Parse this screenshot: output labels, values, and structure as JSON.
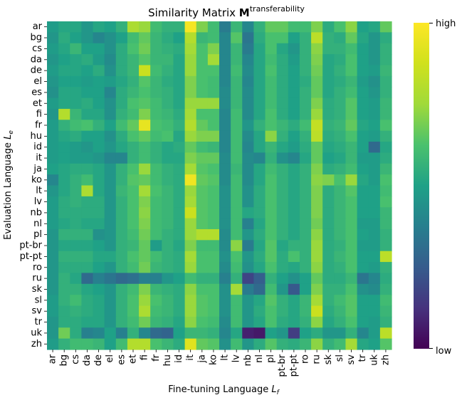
{
  "chart_data": {
    "type": "heatmap",
    "title": {
      "prefix": "Similarity Matrix ",
      "symbol": "M",
      "superscript": "transferability"
    },
    "xlabel": {
      "text": "Fine-tuning Language ",
      "var": "L",
      "sub": "f"
    },
    "ylabel": {
      "text": "Evaluation Language ",
      "var": "L",
      "sub": "e"
    },
    "x_categories": [
      "ar",
      "bg",
      "cs",
      "da",
      "de",
      "el",
      "es",
      "et",
      "fi",
      "fr",
      "hu",
      "id",
      "it",
      "ja",
      "ko",
      "lt",
      "lv",
      "nb",
      "nl",
      "pl",
      "pt-br",
      "pt-pt",
      "ro",
      "ru",
      "sk",
      "sl",
      "sv",
      "tr",
      "uk",
      "zh"
    ],
    "y_categories": [
      "ar",
      "bg",
      "cs",
      "da",
      "de",
      "el",
      "es",
      "et",
      "fi",
      "fr",
      "hu",
      "id",
      "it",
      "ja",
      "ko",
      "lt",
      "lv",
      "nb",
      "nl",
      "pl",
      "pt-br",
      "pt-pt",
      "ro",
      "ru",
      "sk",
      "sl",
      "sv",
      "tr",
      "uk",
      "zh"
    ],
    "colorbar": {
      "colormap": "viridis",
      "high_label": "high",
      "low_label": "low",
      "range": [
        0,
        1
      ]
    },
    "values": [
      [
        0.48,
        0.52,
        0.52,
        0.46,
        0.52,
        0.5,
        0.56,
        0.78,
        0.74,
        0.6,
        0.56,
        0.56,
        0.98,
        0.7,
        0.6,
        0.36,
        0.58,
        0.4,
        0.56,
        0.66,
        0.66,
        0.6,
        0.6,
        0.7,
        0.54,
        0.62,
        0.72,
        0.5,
        0.52,
        0.66
      ],
      [
        0.46,
        0.54,
        0.5,
        0.46,
        0.4,
        0.44,
        0.5,
        0.6,
        0.66,
        0.58,
        0.54,
        0.5,
        0.8,
        0.58,
        0.6,
        0.4,
        0.64,
        0.34,
        0.54,
        0.62,
        0.62,
        0.5,
        0.56,
        0.82,
        0.56,
        0.54,
        0.66,
        0.52,
        0.46,
        0.54
      ],
      [
        0.48,
        0.52,
        0.58,
        0.5,
        0.5,
        0.44,
        0.54,
        0.62,
        0.68,
        0.58,
        0.56,
        0.54,
        0.76,
        0.62,
        0.7,
        0.4,
        0.58,
        0.36,
        0.52,
        0.62,
        0.52,
        0.46,
        0.56,
        0.72,
        0.56,
        0.56,
        0.6,
        0.5,
        0.46,
        0.56
      ],
      [
        0.46,
        0.5,
        0.52,
        0.54,
        0.48,
        0.42,
        0.54,
        0.58,
        0.64,
        0.58,
        0.58,
        0.52,
        0.74,
        0.62,
        0.76,
        0.4,
        0.58,
        0.4,
        0.52,
        0.6,
        0.54,
        0.48,
        0.56,
        0.7,
        0.52,
        0.54,
        0.62,
        0.5,
        0.46,
        0.56
      ],
      [
        0.48,
        0.52,
        0.52,
        0.5,
        0.54,
        0.44,
        0.54,
        0.58,
        0.86,
        0.6,
        0.56,
        0.52,
        0.74,
        0.62,
        0.62,
        0.4,
        0.6,
        0.42,
        0.52,
        0.62,
        0.54,
        0.5,
        0.56,
        0.68,
        0.52,
        0.56,
        0.62,
        0.5,
        0.48,
        0.58
      ],
      [
        0.46,
        0.5,
        0.5,
        0.48,
        0.5,
        0.48,
        0.52,
        0.56,
        0.64,
        0.58,
        0.54,
        0.52,
        0.7,
        0.62,
        0.6,
        0.4,
        0.58,
        0.4,
        0.52,
        0.6,
        0.54,
        0.5,
        0.54,
        0.66,
        0.52,
        0.54,
        0.58,
        0.48,
        0.44,
        0.56
      ],
      [
        0.44,
        0.52,
        0.52,
        0.5,
        0.5,
        0.4,
        0.54,
        0.58,
        0.62,
        0.58,
        0.56,
        0.52,
        0.7,
        0.62,
        0.6,
        0.42,
        0.58,
        0.42,
        0.52,
        0.6,
        0.54,
        0.5,
        0.56,
        0.66,
        0.52,
        0.56,
        0.6,
        0.5,
        0.46,
        0.56
      ],
      [
        0.48,
        0.52,
        0.52,
        0.54,
        0.5,
        0.44,
        0.54,
        0.62,
        0.64,
        0.6,
        0.56,
        0.52,
        0.74,
        0.74,
        0.74,
        0.42,
        0.58,
        0.42,
        0.52,
        0.6,
        0.54,
        0.5,
        0.56,
        0.7,
        0.54,
        0.56,
        0.64,
        0.5,
        0.48,
        0.58
      ],
      [
        0.46,
        0.8,
        0.58,
        0.52,
        0.52,
        0.44,
        0.56,
        0.6,
        0.7,
        0.6,
        0.58,
        0.54,
        0.76,
        0.62,
        0.62,
        0.4,
        0.6,
        0.42,
        0.52,
        0.62,
        0.54,
        0.5,
        0.56,
        0.74,
        0.54,
        0.56,
        0.64,
        0.5,
        0.48,
        0.58
      ],
      [
        0.48,
        0.56,
        0.6,
        0.62,
        0.56,
        0.5,
        0.6,
        0.66,
        0.94,
        0.62,
        0.6,
        0.56,
        0.8,
        0.66,
        0.62,
        0.4,
        0.6,
        0.46,
        0.56,
        0.62,
        0.58,
        0.54,
        0.6,
        0.84,
        0.56,
        0.58,
        0.66,
        0.52,
        0.5,
        0.62
      ],
      [
        0.48,
        0.52,
        0.54,
        0.5,
        0.5,
        0.44,
        0.54,
        0.62,
        0.66,
        0.6,
        0.62,
        0.52,
        0.74,
        0.7,
        0.7,
        0.4,
        0.6,
        0.42,
        0.52,
        0.72,
        0.56,
        0.5,
        0.56,
        0.82,
        0.54,
        0.56,
        0.62,
        0.5,
        0.48,
        0.56
      ],
      [
        0.48,
        0.5,
        0.48,
        0.46,
        0.5,
        0.46,
        0.52,
        0.56,
        0.6,
        0.56,
        0.52,
        0.54,
        0.66,
        0.6,
        0.58,
        0.4,
        0.6,
        0.4,
        0.52,
        0.58,
        0.52,
        0.48,
        0.54,
        0.66,
        0.52,
        0.54,
        0.58,
        0.5,
        0.3,
        0.52
      ],
      [
        0.48,
        0.5,
        0.48,
        0.48,
        0.46,
        0.4,
        0.4,
        0.56,
        0.6,
        0.56,
        0.52,
        0.52,
        0.7,
        0.66,
        0.66,
        0.42,
        0.6,
        0.42,
        0.4,
        0.56,
        0.44,
        0.4,
        0.52,
        0.66,
        0.5,
        0.52,
        0.58,
        0.48,
        0.48,
        0.54
      ],
      [
        0.5,
        0.52,
        0.54,
        0.54,
        0.52,
        0.46,
        0.56,
        0.62,
        0.74,
        0.6,
        0.56,
        0.54,
        0.76,
        0.64,
        0.62,
        0.42,
        0.58,
        0.42,
        0.52,
        0.6,
        0.56,
        0.52,
        0.56,
        0.7,
        0.54,
        0.56,
        0.6,
        0.5,
        0.48,
        0.58
      ],
      [
        0.4,
        0.52,
        0.56,
        0.6,
        0.52,
        0.46,
        0.56,
        0.64,
        0.66,
        0.6,
        0.56,
        0.54,
        0.96,
        0.66,
        0.64,
        0.42,
        0.6,
        0.42,
        0.52,
        0.62,
        0.56,
        0.52,
        0.56,
        0.72,
        0.7,
        0.62,
        0.74,
        0.52,
        0.48,
        0.62
      ],
      [
        0.46,
        0.52,
        0.56,
        0.78,
        0.52,
        0.46,
        0.58,
        0.62,
        0.76,
        0.62,
        0.58,
        0.54,
        0.74,
        0.64,
        0.62,
        0.44,
        0.6,
        0.44,
        0.54,
        0.62,
        0.56,
        0.52,
        0.56,
        0.7,
        0.54,
        0.58,
        0.64,
        0.5,
        0.5,
        0.6
      ],
      [
        0.48,
        0.54,
        0.56,
        0.54,
        0.54,
        0.46,
        0.56,
        0.62,
        0.7,
        0.6,
        0.58,
        0.54,
        0.76,
        0.64,
        0.62,
        0.44,
        0.6,
        0.44,
        0.54,
        0.62,
        0.56,
        0.52,
        0.56,
        0.7,
        0.54,
        0.58,
        0.62,
        0.5,
        0.5,
        0.62
      ],
      [
        0.48,
        0.54,
        0.54,
        0.54,
        0.54,
        0.46,
        0.56,
        0.62,
        0.72,
        0.6,
        0.58,
        0.54,
        0.86,
        0.64,
        0.62,
        0.44,
        0.6,
        0.52,
        0.54,
        0.62,
        0.56,
        0.52,
        0.56,
        0.7,
        0.54,
        0.58,
        0.62,
        0.5,
        0.5,
        0.58
      ],
      [
        0.48,
        0.52,
        0.54,
        0.52,
        0.52,
        0.46,
        0.56,
        0.62,
        0.7,
        0.6,
        0.58,
        0.54,
        0.74,
        0.64,
        0.62,
        0.44,
        0.6,
        0.38,
        0.52,
        0.62,
        0.56,
        0.52,
        0.56,
        0.68,
        0.54,
        0.58,
        0.62,
        0.48,
        0.48,
        0.58
      ],
      [
        0.46,
        0.56,
        0.56,
        0.56,
        0.44,
        0.46,
        0.56,
        0.6,
        0.68,
        0.6,
        0.56,
        0.54,
        0.74,
        0.8,
        0.8,
        0.42,
        0.6,
        0.46,
        0.54,
        0.62,
        0.56,
        0.52,
        0.56,
        0.72,
        0.54,
        0.58,
        0.62,
        0.5,
        0.48,
        0.56
      ],
      [
        0.46,
        0.52,
        0.52,
        0.52,
        0.5,
        0.46,
        0.56,
        0.58,
        0.66,
        0.48,
        0.56,
        0.52,
        0.7,
        0.6,
        0.6,
        0.42,
        0.72,
        0.36,
        0.52,
        0.64,
        0.52,
        0.56,
        0.56,
        0.74,
        0.54,
        0.56,
        0.62,
        0.48,
        0.48,
        0.56
      ],
      [
        0.46,
        0.56,
        0.56,
        0.56,
        0.52,
        0.52,
        0.56,
        0.62,
        0.66,
        0.6,
        0.56,
        0.54,
        0.76,
        0.62,
        0.62,
        0.44,
        0.62,
        0.46,
        0.54,
        0.64,
        0.54,
        0.62,
        0.56,
        0.74,
        0.54,
        0.58,
        0.62,
        0.5,
        0.5,
        0.82
      ],
      [
        0.46,
        0.54,
        0.54,
        0.54,
        0.5,
        0.46,
        0.56,
        0.6,
        0.68,
        0.58,
        0.56,
        0.54,
        0.74,
        0.62,
        0.62,
        0.42,
        0.6,
        0.44,
        0.52,
        0.62,
        0.54,
        0.52,
        0.56,
        0.72,
        0.54,
        0.56,
        0.62,
        0.5,
        0.48,
        0.56
      ],
      [
        0.46,
        0.56,
        0.52,
        0.3,
        0.38,
        0.34,
        0.3,
        0.32,
        0.38,
        0.38,
        0.46,
        0.5,
        0.6,
        0.56,
        0.56,
        0.38,
        0.56,
        0.18,
        0.26,
        0.56,
        0.5,
        0.44,
        0.5,
        0.66,
        0.54,
        0.54,
        0.58,
        0.34,
        0.4,
        0.54
      ],
      [
        0.46,
        0.56,
        0.56,
        0.52,
        0.5,
        0.46,
        0.56,
        0.6,
        0.7,
        0.58,
        0.56,
        0.54,
        0.72,
        0.62,
        0.62,
        0.44,
        0.76,
        0.36,
        0.3,
        0.6,
        0.46,
        0.24,
        0.5,
        0.7,
        0.56,
        0.56,
        0.62,
        0.44,
        0.42,
        0.56
      ],
      [
        0.48,
        0.56,
        0.6,
        0.54,
        0.52,
        0.46,
        0.56,
        0.62,
        0.74,
        0.62,
        0.58,
        0.54,
        0.74,
        0.64,
        0.62,
        0.44,
        0.6,
        0.46,
        0.52,
        0.64,
        0.56,
        0.52,
        0.58,
        0.76,
        0.56,
        0.6,
        0.64,
        0.5,
        0.5,
        0.6
      ],
      [
        0.48,
        0.54,
        0.56,
        0.54,
        0.52,
        0.46,
        0.56,
        0.62,
        0.78,
        0.6,
        0.58,
        0.54,
        0.74,
        0.64,
        0.62,
        0.44,
        0.6,
        0.46,
        0.54,
        0.62,
        0.56,
        0.52,
        0.58,
        0.86,
        0.54,
        0.58,
        0.64,
        0.5,
        0.5,
        0.58
      ],
      [
        0.46,
        0.54,
        0.54,
        0.52,
        0.52,
        0.46,
        0.56,
        0.6,
        0.68,
        0.58,
        0.56,
        0.52,
        0.72,
        0.62,
        0.6,
        0.42,
        0.6,
        0.46,
        0.52,
        0.62,
        0.54,
        0.52,
        0.56,
        0.72,
        0.52,
        0.56,
        0.62,
        0.5,
        0.48,
        0.56
      ],
      [
        0.46,
        0.68,
        0.54,
        0.38,
        0.4,
        0.5,
        0.38,
        0.56,
        0.4,
        0.3,
        0.28,
        0.5,
        0.58,
        0.58,
        0.56,
        0.4,
        0.52,
        0.08,
        0.06,
        0.5,
        0.46,
        0.16,
        0.5,
        0.54,
        0.46,
        0.46,
        0.56,
        0.4,
        0.48,
        0.82
      ],
      [
        0.48,
        0.56,
        0.6,
        0.6,
        0.58,
        0.5,
        0.6,
        0.8,
        0.8,
        0.62,
        0.58,
        0.54,
        0.92,
        0.66,
        0.64,
        0.44,
        0.6,
        0.46,
        0.54,
        0.64,
        0.56,
        0.54,
        0.58,
        0.72,
        0.56,
        0.6,
        0.76,
        0.52,
        0.5,
        0.64
      ]
    ]
  }
}
